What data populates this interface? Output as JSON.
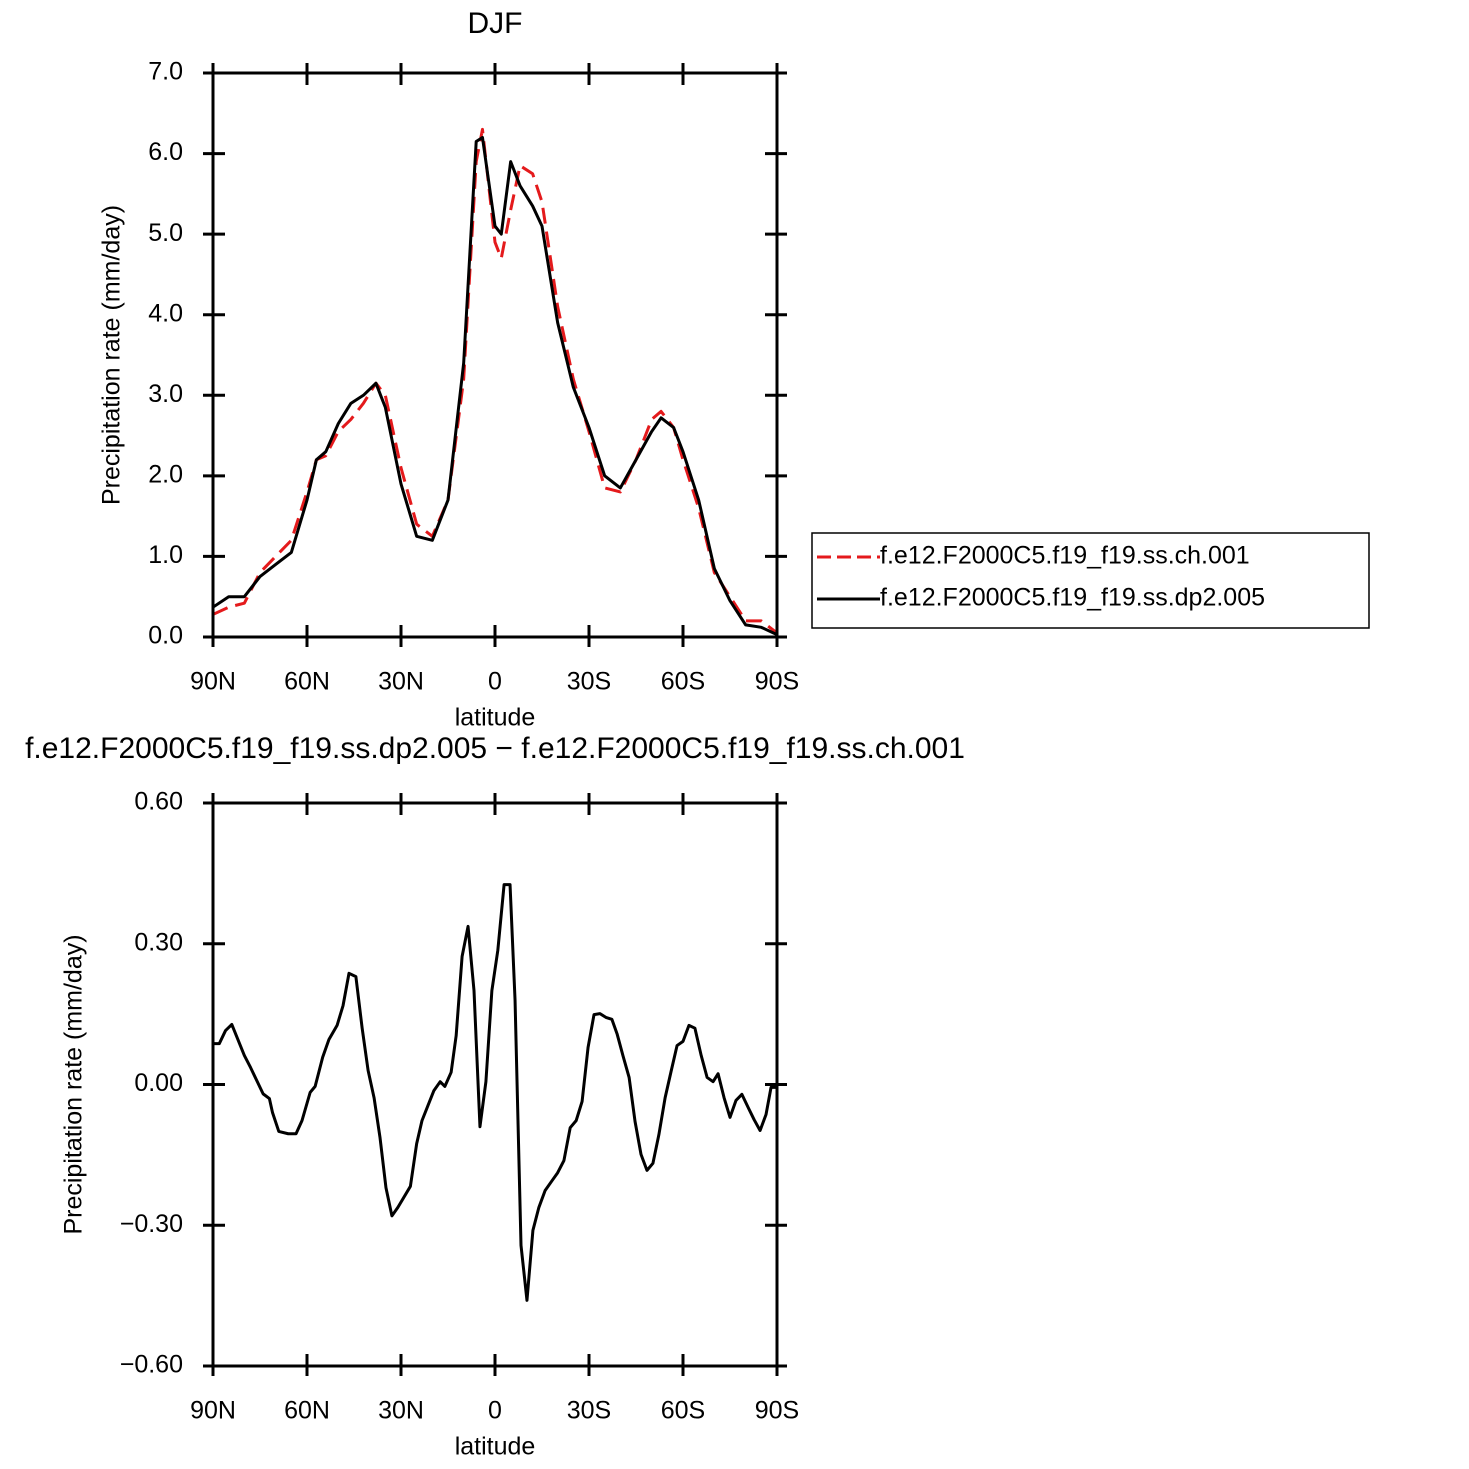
{
  "chart_data": [
    {
      "type": "line",
      "title": "DJF",
      "xlabel": "latitude",
      "ylabel": "Precipitation rate (mm/day)",
      "x": [
        90,
        85,
        80,
        75,
        70,
        65,
        60,
        57,
        54,
        50,
        46,
        42,
        38,
        35,
        30,
        25,
        20,
        15,
        10,
        6,
        4,
        0,
        -2,
        -5,
        -8,
        -12,
        -15,
        -20,
        -25,
        -30,
        -35,
        -40,
        -45,
        -50,
        -53,
        -57,
        -60,
        -65,
        -70,
        -75,
        -80,
        -85,
        -90
      ],
      "series": [
        {
          "name": "f.e12.F2000C5.f19_f19.ss.ch.001",
          "color": "#e41a1c",
          "dashed": true,
          "values": [
            0.28,
            0.37,
            0.42,
            0.8,
            1.0,
            1.2,
            1.8,
            2.2,
            2.25,
            2.55,
            2.7,
            2.9,
            3.15,
            3.0,
            2.1,
            1.4,
            1.25,
            1.7,
            3.2,
            5.9,
            6.3,
            4.9,
            4.7,
            5.3,
            5.85,
            5.75,
            5.4,
            4.1,
            3.2,
            2.55,
            1.85,
            1.8,
            2.2,
            2.7,
            2.8,
            2.6,
            2.2,
            1.6,
            0.8,
            0.5,
            0.2,
            0.2,
            0.05
          ]
        },
        {
          "name": "f.e12.F2000C5.f19_f19.ss.dp2.005",
          "color": "#000000",
          "dashed": false,
          "values": [
            0.37,
            0.5,
            0.5,
            0.75,
            0.9,
            1.05,
            1.7,
            2.2,
            2.3,
            2.65,
            2.9,
            3.0,
            3.15,
            2.85,
            1.9,
            1.25,
            1.2,
            1.7,
            3.4,
            6.15,
            6.2,
            5.1,
            5.0,
            5.9,
            5.6,
            5.35,
            5.1,
            3.9,
            3.1,
            2.6,
            2.0,
            1.85,
            2.2,
            2.55,
            2.72,
            2.6,
            2.3,
            1.7,
            0.85,
            0.45,
            0.15,
            0.12,
            0.03
          ]
        }
      ],
      "xlim": [
        90,
        -90
      ],
      "xticks": [
        {
          "value": 90,
          "label": "90N"
        },
        {
          "value": 60,
          "label": "60N"
        },
        {
          "value": 30,
          "label": "30N"
        },
        0,
        {
          "value": -30,
          "label": "30S"
        },
        {
          "value": -60,
          "label": "60S"
        },
        {
          "value": -90,
          "label": "90S"
        }
      ],
      "ylim": [
        0,
        7
      ],
      "yticks": [
        {
          "value": 0,
          "label": "0.0"
        },
        {
          "value": 1,
          "label": "1.0"
        },
        {
          "value": 2,
          "label": "2.0"
        },
        {
          "value": 3,
          "label": "3.0"
        },
        {
          "value": 4,
          "label": "4.0"
        },
        {
          "value": 5,
          "label": "5.0"
        },
        {
          "value": 6,
          "label": "6.0"
        },
        {
          "value": 7,
          "label": "7.0"
        }
      ],
      "legend": "right"
    },
    {
      "type": "line",
      "title": "f.e12.F2000C5.f19_f19.ss.dp2.005 − f.e12.F2000C5.f19_f19.ss.ch.001",
      "xlabel": "latitude",
      "ylabel": "Precipitation rate (mm/day)",
      "x": [
        90,
        88,
        86,
        84,
        80,
        78,
        74,
        72,
        71,
        69,
        66,
        63.5,
        61.6,
        59,
        57.4,
        55,
        53,
        50.4,
        48.5,
        46.6,
        44.4,
        42.4,
        40.5,
        38.6,
        36.7,
        34.8,
        32.9,
        31,
        27,
        25,
        23.3,
        21.4,
        19.5,
        17.5,
        16,
        14,
        12.4,
        10.5,
        8.6,
        6.7,
        4.8,
        2.9,
        1,
        -0.9,
        -2.9,
        -4.8,
        -6.4,
        -8.3,
        -10.2,
        -12.1,
        -14,
        -16,
        -18.2,
        -20,
        -22,
        -24,
        -25.9,
        -27.8,
        -29.7,
        -31.6,
        -33.5,
        -35.4,
        -37.3,
        -39,
        -40.9,
        -42.8,
        -44.7,
        -46.6,
        -48.5,
        -50.4,
        -52.3,
        -54.3,
        -56.2,
        -58.1,
        -60,
        -61.9,
        -63.8,
        -65.8,
        -67.7,
        -69.6,
        -71.2,
        -73.1,
        -75,
        -76.9,
        -78.8,
        -80.8,
        -82.7,
        -84.6,
        -86.5,
        -88.1,
        -90
      ],
      "series": [
        {
          "color": "#000000",
          "dashed": false,
          "values": [
            0.087,
            0.087,
            0.115,
            0.128,
            0.062,
            0.036,
            -0.02,
            -0.03,
            -0.06,
            -0.1,
            -0.105,
            -0.105,
            -0.077,
            -0.017,
            -0.004,
            0.058,
            0.096,
            0.126,
            0.168,
            0.237,
            0.23,
            0.12,
            0.03,
            -0.028,
            -0.113,
            -0.22,
            -0.28,
            -0.262,
            -0.217,
            -0.126,
            -0.077,
            -0.045,
            -0.013,
            0.006,
            -0.004,
            0.026,
            0.104,
            0.273,
            0.337,
            0.2,
            -0.09,
            0.006,
            0.2,
            0.286,
            0.426,
            0.426,
            0.18,
            -0.343,
            -0.46,
            -0.311,
            -0.262,
            -0.226,
            -0.205,
            -0.188,
            -0.162,
            -0.092,
            -0.077,
            -0.036,
            0.079,
            0.149,
            0.151,
            0.143,
            0.139,
            0.107,
            0.06,
            0.015,
            -0.079,
            -0.149,
            -0.183,
            -0.168,
            -0.107,
            -0.028,
            0.028,
            0.083,
            0.092,
            0.126,
            0.12,
            0.062,
            0.015,
            0.006,
            0.023,
            -0.028,
            -0.07,
            -0.034,
            -0.021,
            -0.049,
            -0.075,
            -0.098,
            -0.064,
            -0.006,
            -0.006
          ]
        }
      ],
      "xlim": [
        90,
        -90
      ],
      "xticks": [
        {
          "value": 90,
          "label": "90N"
        },
        {
          "value": 60,
          "label": "60N"
        },
        {
          "value": 30,
          "label": "30N"
        },
        0,
        {
          "value": -30,
          "label": "30S"
        },
        {
          "value": -60,
          "label": "60S"
        },
        {
          "value": -90,
          "label": "90S"
        }
      ],
      "ylim": [
        -0.6,
        0.6
      ],
      "yticks": [
        {
          "value": -0.6,
          "label": "−0.60"
        },
        {
          "value": -0.3,
          "label": "−0.30"
        },
        {
          "value": 0,
          "label": "0.00"
        },
        {
          "value": 0.3,
          "label": "0.30"
        },
        {
          "value": 0.6,
          "label": "0.60"
        }
      ]
    }
  ]
}
